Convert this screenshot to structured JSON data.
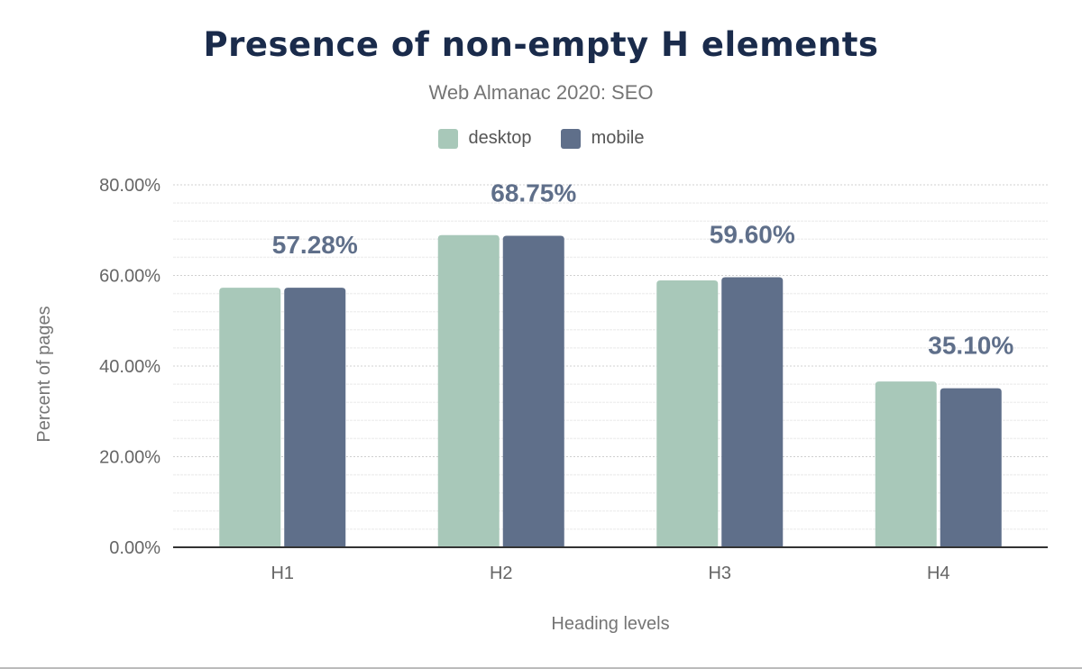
{
  "chart_data": {
    "type": "bar",
    "title": "Presence of non-empty H elements",
    "subtitle": "Web Almanac 2020: SEO",
    "xlabel": "Heading levels",
    "ylabel": "Percent of pages",
    "categories": [
      "H1",
      "H2",
      "H3",
      "H4"
    ],
    "series": [
      {
        "name": "desktop",
        "color": "#a8c8b9",
        "values": [
          57.3,
          68.9,
          58.9,
          36.6
        ]
      },
      {
        "name": "mobile",
        "color": "#5f6f8a",
        "values": [
          57.28,
          68.75,
          59.6,
          35.1
        ]
      }
    ],
    "data_labels": [
      "57.28%",
      "68.75%",
      "59.60%",
      "35.10%"
    ],
    "yticks": [
      "0.00%",
      "20.00%",
      "40.00%",
      "60.00%",
      "80.00%"
    ],
    "ylim": [
      0,
      80
    ],
    "grid": true,
    "legend": "top-center"
  }
}
